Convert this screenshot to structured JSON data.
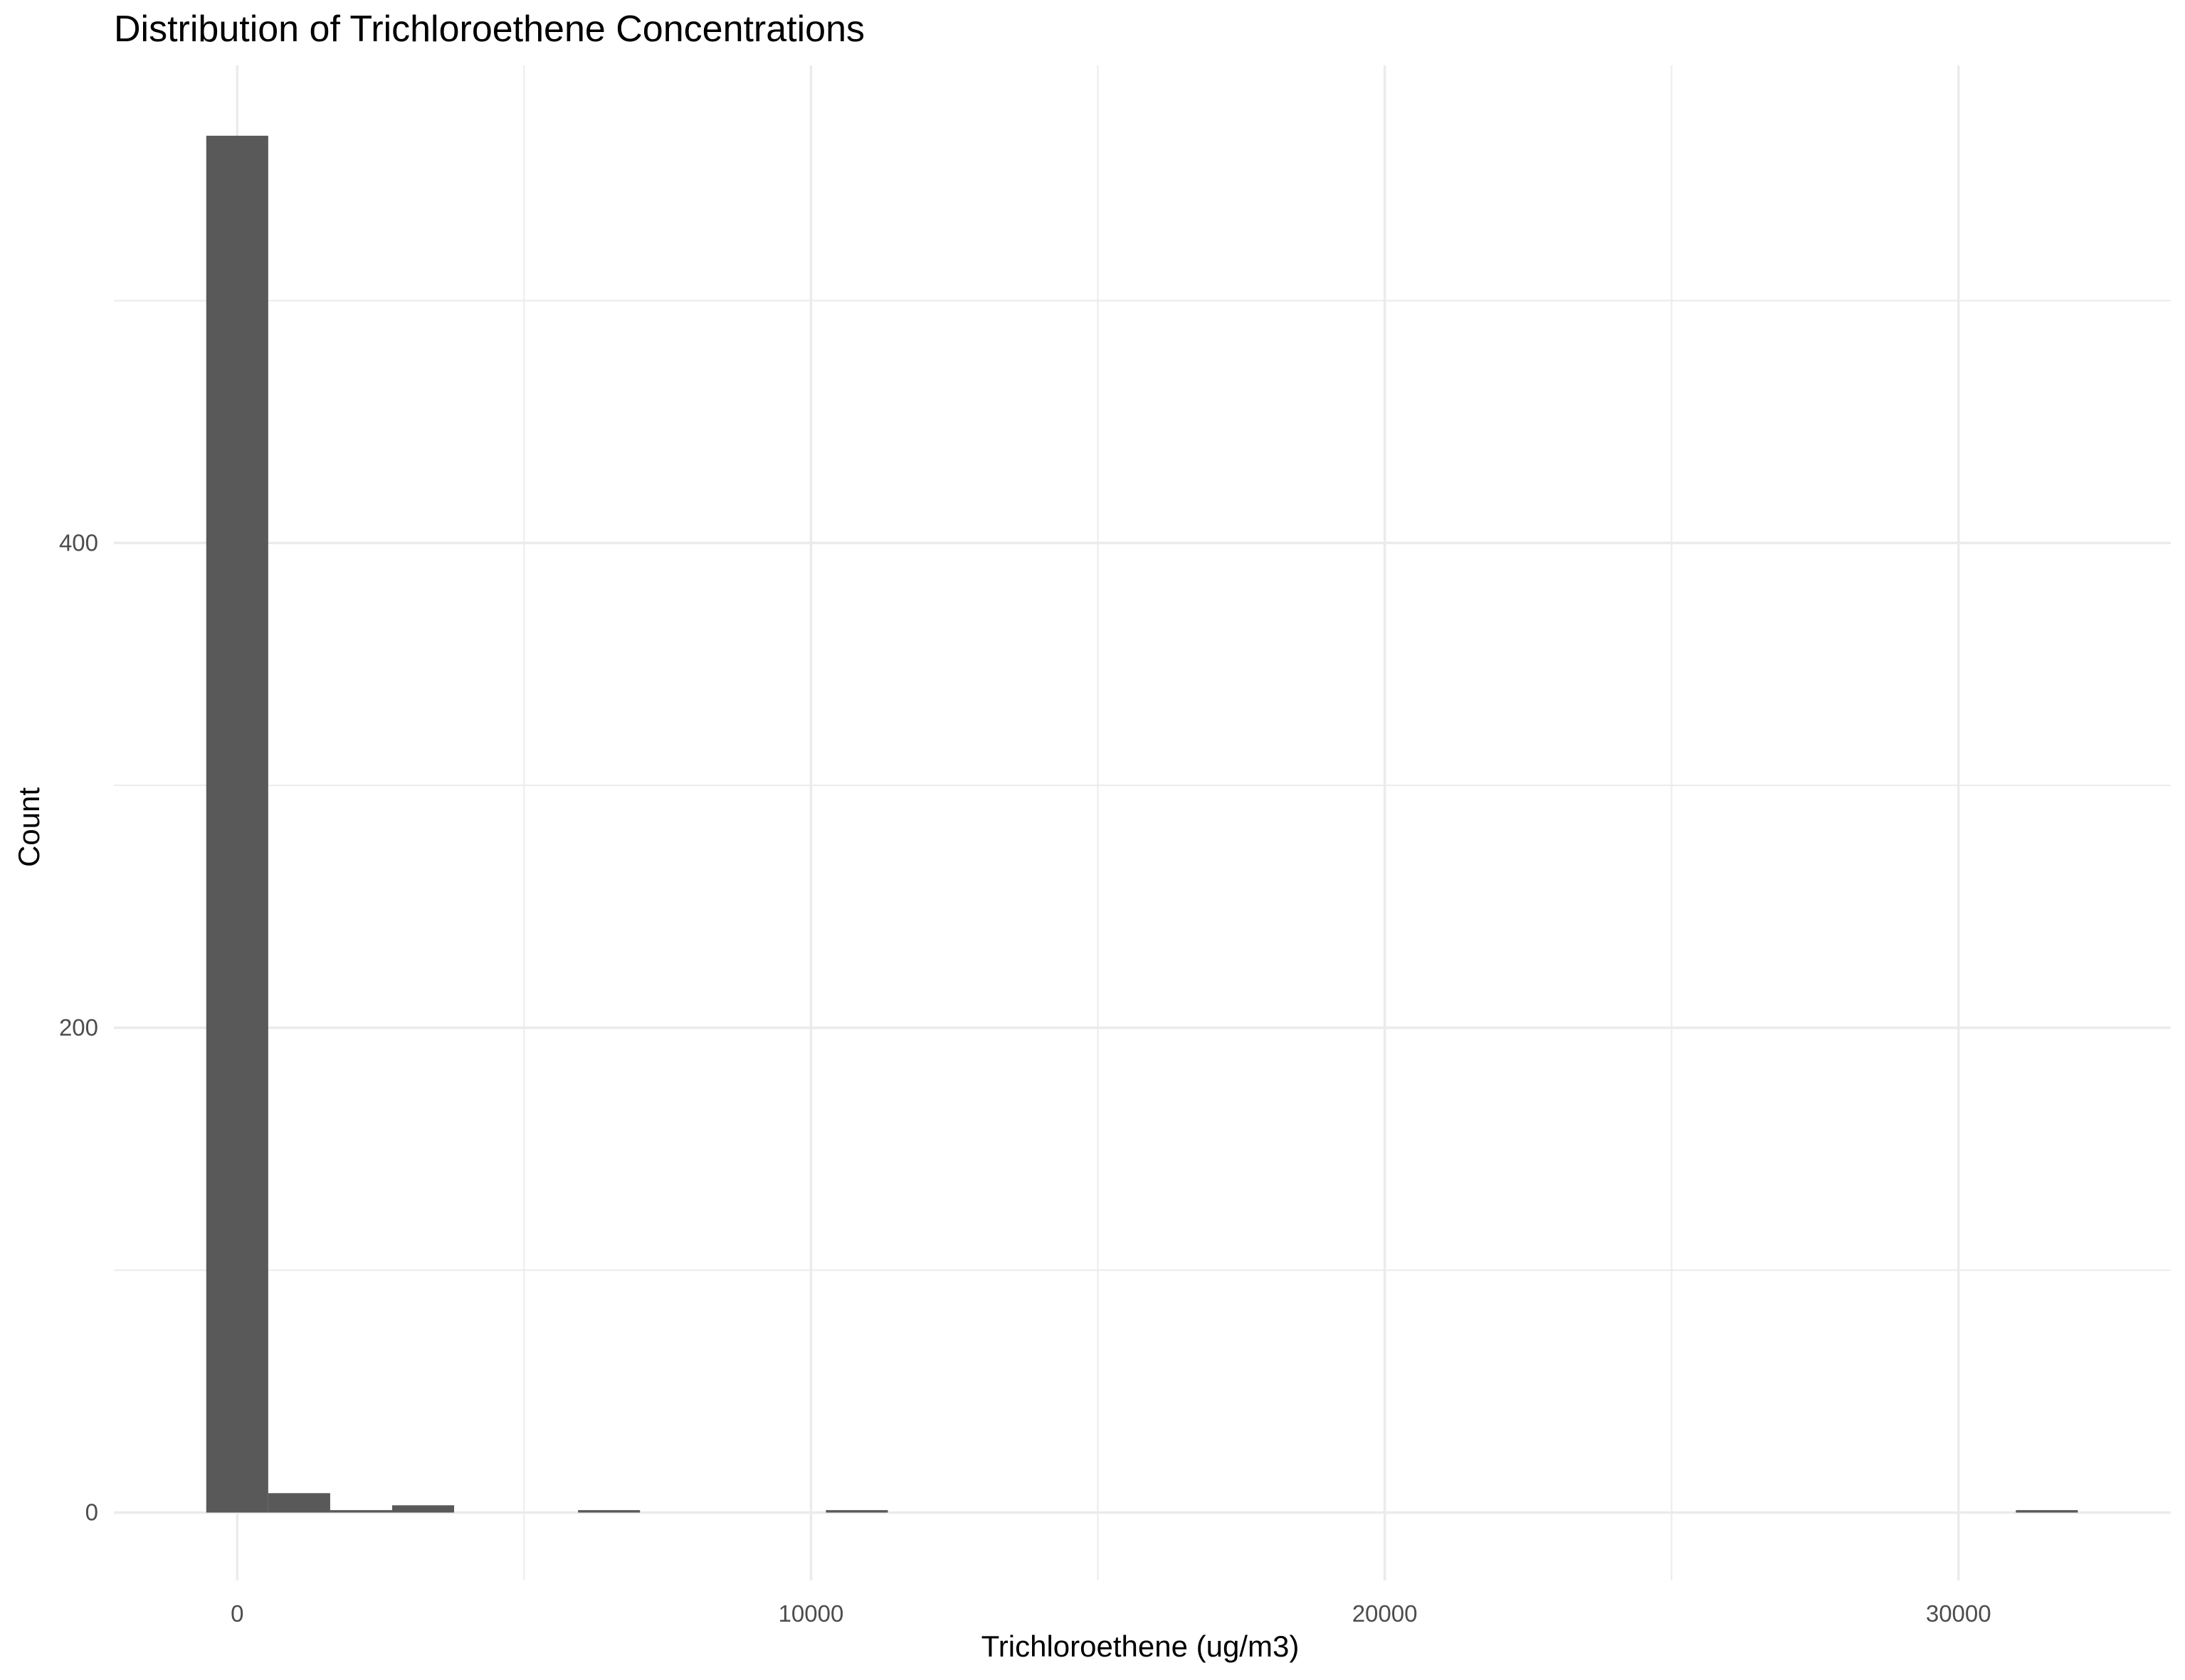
{
  "chart_data": {
    "type": "bar",
    "title": "Distribution of Trichloroethene Concentrations",
    "xlabel": "Trichloroethene (ug/m3)",
    "ylabel": "Count",
    "bin_width": 1080,
    "bins": [
      {
        "x_start": -540,
        "x_end": 540,
        "count": 568
      },
      {
        "x_start": 540,
        "x_end": 1620,
        "count": 8
      },
      {
        "x_start": 1620,
        "x_end": 2700,
        "count": 1
      },
      {
        "x_start": 2700,
        "x_end": 3780,
        "count": 3
      },
      {
        "x_start": 5940,
        "x_end": 7020,
        "count": 1
      },
      {
        "x_start": 10260,
        "x_end": 11340,
        "count": 1
      },
      {
        "x_start": 31000,
        "x_end": 32080,
        "count": 1
      }
    ],
    "xlim": [
      -2150,
      33700
    ],
    "ylim": [
      -28,
      597
    ],
    "x_ticks": [
      0,
      10000,
      20000,
      30000
    ],
    "x_tick_labels": [
      "0",
      "10000",
      "20000",
      "30000"
    ],
    "x_minor_ticks": [
      5000,
      15000,
      25000
    ],
    "y_ticks": [
      0,
      200,
      400
    ],
    "y_tick_labels": [
      "0",
      "200",
      "400"
    ],
    "y_minor_ticks": [
      100,
      300,
      500
    ],
    "grid": true,
    "legend": "none",
    "colors": {
      "bar": "#595959",
      "grid": "#ebebeb",
      "background": "#ffffff"
    }
  }
}
